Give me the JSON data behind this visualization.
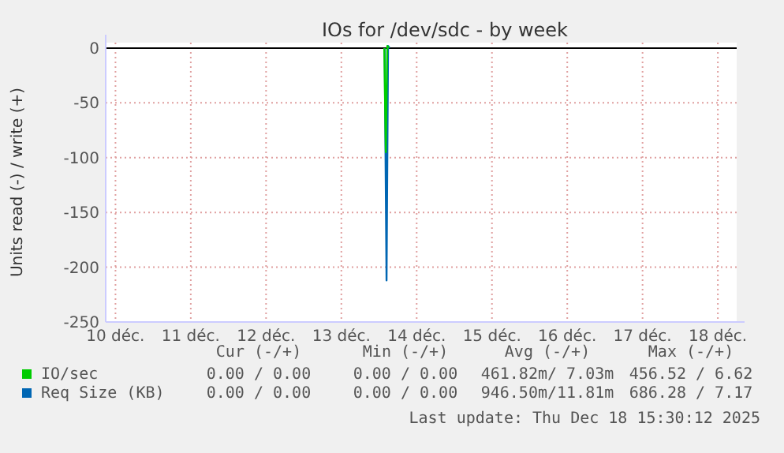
{
  "chart_data": {
    "type": "line",
    "title": "IOs for /dev/sdc - by week",
    "ylabel": "Units read (-) / write (+)",
    "xlim": [
      9.87,
      18.25
    ],
    "xticks": [
      {
        "value": 10,
        "label": "10 déc."
      },
      {
        "value": 11,
        "label": "11 déc."
      },
      {
        "value": 12,
        "label": "12 déc."
      },
      {
        "value": 13,
        "label": "13 déc."
      },
      {
        "value": 14,
        "label": "14 déc."
      },
      {
        "value": 15,
        "label": "15 déc."
      },
      {
        "value": 16,
        "label": "16 déc."
      },
      {
        "value": 17,
        "label": "17 déc."
      },
      {
        "value": 18,
        "label": "18 déc."
      }
    ],
    "ylim": [
      -250,
      5
    ],
    "yticks": [
      0,
      -50,
      -100,
      -150,
      -200,
      -250
    ],
    "grid": true,
    "legend": "bottom",
    "ref_lines": [
      {
        "axis": "y",
        "value": 0,
        "color": "#000000"
      }
    ],
    "series": [
      {
        "name": "IO/sec",
        "color": "#00cc00",
        "x": [
          13.57,
          13.59,
          13.61,
          13.63
        ],
        "values": [
          0,
          -95,
          2,
          0
        ]
      },
      {
        "name": "Req Size (KB)",
        "color": "#0066b3",
        "x": [
          13.575,
          13.6,
          13.62,
          13.64
        ],
        "values": [
          0,
          -212,
          2,
          0
        ]
      }
    ],
    "annotations": [
      "Cur (-/+)",
      "Min (-/+)",
      "Avg (-/+)",
      "Max (-/+)",
      "0.00 / 0.00",
      "0.00 / 0.00",
      "461.82m/ 7.03m",
      "456.52 / 6.62",
      "0.00 / 0.00",
      "0.00 / 0.00",
      "946.50m/11.81m",
      "686.28 / 7.17",
      "Last update: Thu Dec 18 15:30:12 2025"
    ]
  }
}
